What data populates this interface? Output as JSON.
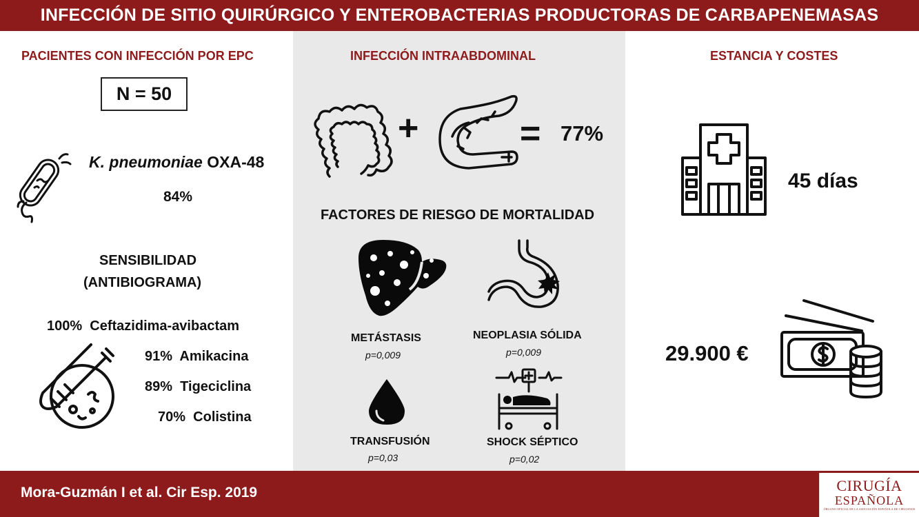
{
  "header": {
    "title": "INFECCIÓN DE SITIO QUIRÚRGICO Y ENTEROBACTERIAS PRODUCTORAS DE CARBAPENEMASAS"
  },
  "left": {
    "title": "PACIENTES CON INFECCIÓN POR EPC",
    "n_value": "N = 50",
    "organism_italic": "K. pneumoniae",
    "organism_rest": "OXA-48",
    "organism_pct": "84%",
    "sensitivity_title_1": "SENSIBILIDAD",
    "sensitivity_title_2": "(ANTIBIOGRAMA)",
    "sensitivities": [
      {
        "pct": "100%",
        "drug": "Ceftazidima-avibactam"
      },
      {
        "pct": "91%",
        "drug": "Amikacina"
      },
      {
        "pct": "89%",
        "drug": "Tigeciclina"
      },
      {
        "pct": "70%",
        "drug": "Colistina"
      }
    ]
  },
  "middle": {
    "title": "INFECCIÓN INTRAABDOMINAL",
    "plus": "+",
    "equals": "=",
    "result_pct": "77%",
    "risk_title": "FACTORES DE RIESGO DE MORTALIDAD",
    "factors": [
      {
        "label": "METÁSTASIS",
        "p": "p=0,009",
        "icon": "liver-metastasis-icon"
      },
      {
        "label": "NEOPLASIA SÓLIDA",
        "p": "p=0,009",
        "icon": "stomach-tumor-icon"
      },
      {
        "label": "TRANSFUSIÓN",
        "p": "p=0,03",
        "icon": "blood-drop-icon"
      },
      {
        "label": "SHOCK SÉPTICO",
        "p": "p=0,02",
        "icon": "hospital-bed-monitor-icon"
      }
    ]
  },
  "right": {
    "title": "ESTANCIA Y COSTES",
    "stay": "45 días",
    "cost": "29.900 €"
  },
  "footer": {
    "citation": "Mora-Guzmán I et al. Cir Esp. 2019",
    "logo_line1": "CIRUGÍA",
    "logo_line2": "ESPAÑOLA",
    "logo_line3": "ÓRGANO OFICIAL DE LA ASOCIACIÓN ESPAÑOLA DE CIRUJANOS"
  },
  "colors": {
    "brand": "#8e1b1b",
    "panel": "#e9e9e9"
  }
}
